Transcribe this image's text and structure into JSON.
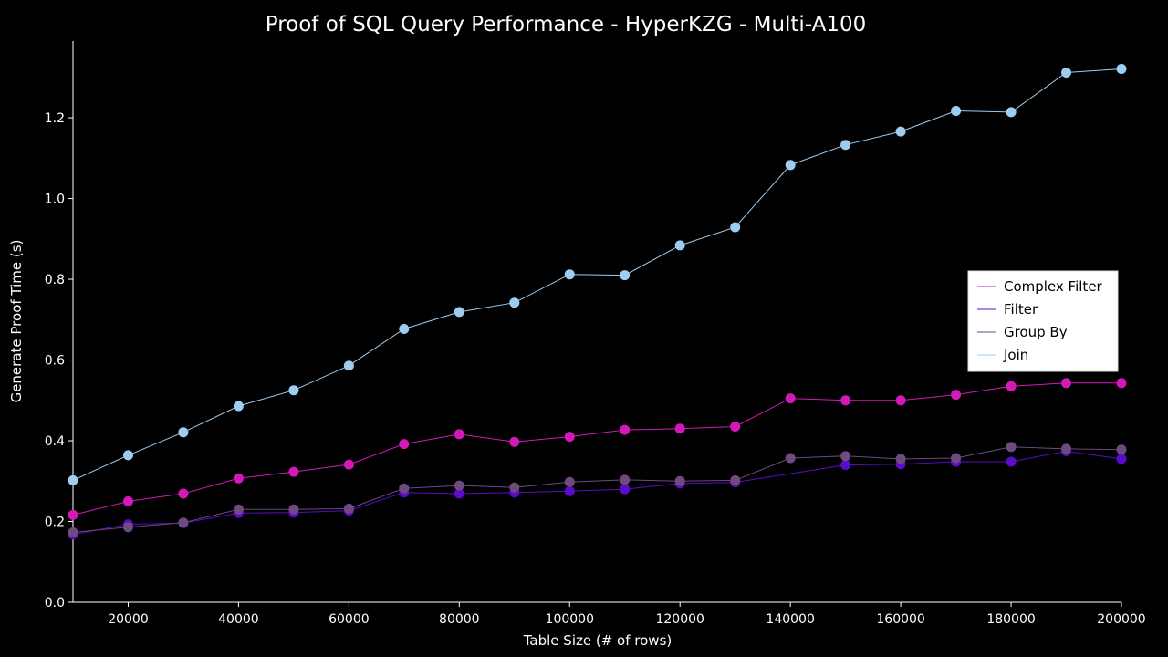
{
  "chart_data": {
    "type": "line",
    "title": "Proof of SQL Query Performance - HyperKZG - Multi-A100",
    "xlabel": "Table Size (# of rows)",
    "ylabel": "Generate Proof Time (s)",
    "xlim": [
      10000,
      200000
    ],
    "ylim": [
      0,
      1.39
    ],
    "x_ticks": [
      20000,
      40000,
      60000,
      80000,
      100000,
      120000,
      140000,
      160000,
      180000,
      200000
    ],
    "x_tick_labels": [
      "20000",
      "40000",
      "60000",
      "80000",
      "100000",
      "120000",
      "140000",
      "160000",
      "180000",
      "200000"
    ],
    "y_ticks": [
      0.0,
      0.2,
      0.4,
      0.6,
      0.8,
      1.0,
      1.2
    ],
    "y_tick_labels": [
      "0.0",
      "0.2",
      "0.4",
      "0.6",
      "0.8",
      "1.0",
      "1.2"
    ],
    "grid": false,
    "legend_position": "center-right",
    "background": "#000000",
    "x": [
      10000,
      20000,
      30000,
      40000,
      50000,
      60000,
      70000,
      80000,
      90000,
      100000,
      110000,
      120000,
      130000,
      140000,
      150000,
      160000,
      170000,
      180000,
      190000,
      200000
    ],
    "series": [
      {
        "name": "Complex Filter",
        "color": "#d11ab8",
        "values": [
          0.216,
          0.25,
          0.269,
          0.307,
          0.323,
          0.341,
          0.392,
          0.416,
          0.397,
          0.41,
          0.427,
          0.43,
          0.435,
          0.505,
          0.5,
          0.5,
          0.514,
          0.535,
          0.543,
          0.543
        ]
      },
      {
        "name": "Filter",
        "color": "#5a0cc8",
        "values": [
          0.168,
          0.193,
          0.196,
          0.221,
          0.222,
          0.227,
          0.272,
          0.269,
          0.272,
          0.275,
          0.28,
          0.294,
          0.297,
          null,
          0.34,
          0.342,
          0.348,
          0.348,
          0.374,
          0.355
        ]
      },
      {
        "name": "Group By",
        "color": "#6e4a7e",
        "values": [
          0.173,
          0.186,
          0.197,
          0.23,
          0.23,
          0.232,
          0.282,
          0.289,
          0.284,
          0.298,
          0.303,
          0.3,
          0.302,
          0.357,
          0.362,
          0.355,
          0.357,
          0.385,
          0.38,
          0.378
        ]
      },
      {
        "name": "Join",
        "color": "#9ecdf2",
        "values": [
          0.302,
          0.364,
          0.421,
          0.486,
          0.525,
          0.586,
          0.677,
          0.719,
          0.742,
          0.812,
          0.81,
          0.884,
          0.929,
          1.083,
          1.133,
          1.166,
          1.217,
          1.214,
          1.312,
          1.321
        ]
      }
    ]
  }
}
